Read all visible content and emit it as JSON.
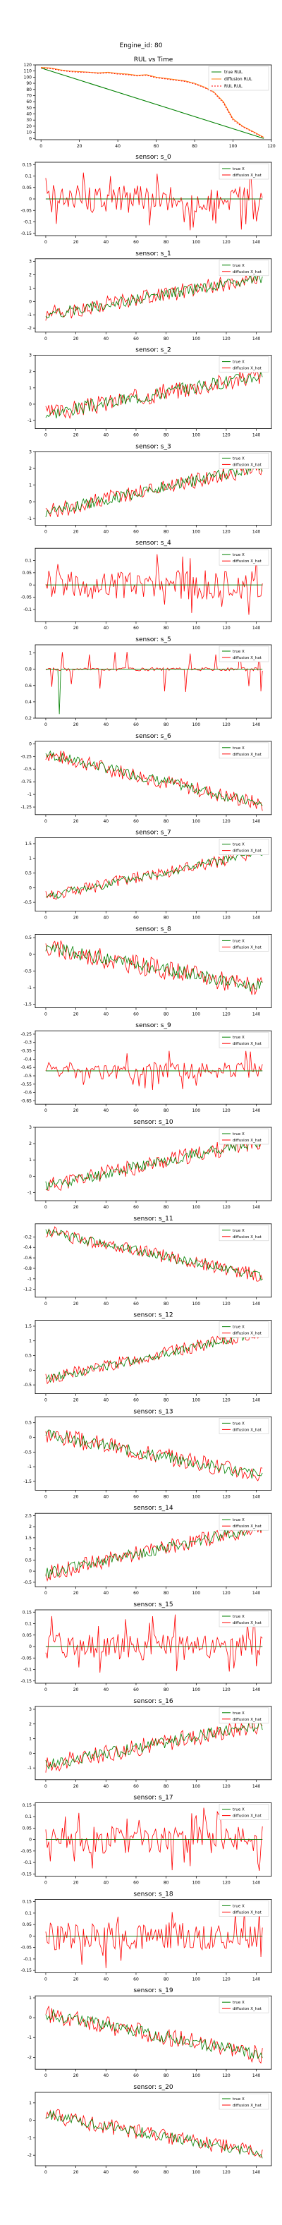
{
  "figure": {
    "suptitle": "Engine_id: 80"
  },
  "chart_data": [
    {
      "type": "line",
      "title": "RUL vs Time",
      "xlim": [
        -3,
        120
      ],
      "ylim": [
        -2,
        120
      ],
      "xticks": [
        0,
        20,
        40,
        60,
        80,
        100,
        120
      ],
      "yticks": [
        0,
        10,
        20,
        30,
        40,
        50,
        60,
        70,
        80,
        90,
        100,
        110,
        120
      ],
      "legend": "top-right",
      "series": [
        {
          "name": "true RUL",
          "color": "#008000",
          "kind": "line",
          "x": [
            0,
            116
          ],
          "y": [
            115,
            0
          ]
        },
        {
          "name": "diffusion RUL",
          "color": "#ff7f0e",
          "kind": "line",
          "x": [
            0,
            5,
            10,
            15,
            20,
            25,
            30,
            35,
            40,
            45,
            50,
            55,
            60,
            65,
            70,
            75,
            80,
            85,
            90,
            95,
            100,
            105,
            110,
            116
          ],
          "y": [
            116,
            115,
            112,
            110,
            109,
            108,
            107,
            108,
            106,
            105,
            103,
            104,
            100,
            98,
            96,
            94,
            90,
            84,
            76,
            60,
            32,
            20,
            12,
            2
          ]
        },
        {
          "name": "RUL RUL",
          "color": "#ff0000",
          "kind": "dash",
          "x": [
            0,
            5,
            10,
            15,
            20,
            25,
            30,
            35,
            40,
            45,
            50,
            55,
            60,
            65,
            70,
            75,
            80,
            85,
            90,
            95,
            100,
            105,
            110,
            116
          ],
          "y": [
            115,
            114,
            111,
            109,
            108,
            108,
            106,
            107,
            105,
            104,
            102,
            103,
            99,
            97,
            95,
            93,
            89,
            83,
            75,
            58,
            30,
            19,
            11,
            1
          ]
        }
      ]
    },
    {
      "type": "line",
      "title": "sensor: s_0",
      "xlim": [
        -7,
        150
      ],
      "ylim": [
        -0.16,
        0.16
      ],
      "yticks": [
        -0.15,
        -0.1,
        -0.05,
        0,
        0.05,
        0.1,
        0.15
      ],
      "trend": [
        0,
        0
      ],
      "noise": 0.06,
      "true_noise": 0.0,
      "spike": 0.14,
      "seed": 1,
      "legend": "top-right"
    },
    {
      "type": "line",
      "title": "sensor: s_1",
      "xlim": [
        -7,
        150
      ],
      "ylim": [
        -2.3,
        3.2
      ],
      "yticks": [
        -2,
        -1,
        0,
        1,
        2,
        3
      ],
      "trend": [
        -1.0,
        1.8
      ],
      "noise": 0.6,
      "true_noise": 0.4,
      "seed": 2,
      "legend": "top-right"
    },
    {
      "type": "line",
      "title": "sensor: s_2",
      "xlim": [
        -7,
        150
      ],
      "ylim": [
        -1.5,
        3.0
      ],
      "yticks": [
        -1,
        0,
        1,
        2,
        3
      ],
      "trend": [
        -0.6,
        1.8
      ],
      "noise": 0.55,
      "true_noise": 0.4,
      "seed": 3,
      "legend": "top-right"
    },
    {
      "type": "line",
      "title": "sensor: s_3",
      "xlim": [
        -7,
        150
      ],
      "ylim": [
        -1.4,
        3.0
      ],
      "yticks": [
        -1,
        0,
        1,
        2,
        3
      ],
      "trend": [
        -0.6,
        2.1
      ],
      "noise": 0.5,
      "true_noise": 0.35,
      "seed": 4,
      "legend": "top-right"
    },
    {
      "type": "line",
      "title": "sensor: s_4",
      "xlim": [
        -7,
        150
      ],
      "ylim": [
        -0.15,
        0.15
      ],
      "yticks": [
        -0.1,
        -0.05,
        0,
        0.05,
        0.1
      ],
      "trend": [
        0,
        0
      ],
      "noise": 0.06,
      "true_noise": 0.0,
      "spike": 0.13,
      "seed": 5,
      "legend": "top-right"
    },
    {
      "type": "line",
      "title": "sensor: s_5",
      "xlim": [
        -7,
        150
      ],
      "ylim": [
        0.2,
        1.1
      ],
      "yticks": [
        0.2,
        0.4,
        0.6,
        0.8,
        1.0
      ],
      "trend": [
        0.8,
        0.8
      ],
      "noise": 0.02,
      "true_noise": 0.0,
      "spike": 0.3,
      "seed": 6,
      "legend": "top-right",
      "dip": [
        9,
        0.25
      ]
    },
    {
      "type": "line",
      "title": "sensor: s_6",
      "xlim": [
        -7,
        150
      ],
      "ylim": [
        -1.4,
        0.05
      ],
      "yticks": [
        -1.25,
        -1.0,
        -0.75,
        -0.5,
        -0.25,
        0.0
      ],
      "trend": [
        -0.2,
        -1.2
      ],
      "noise": 0.15,
      "true_noise": 0.1,
      "seed": 7,
      "legend": "top-right"
    },
    {
      "type": "line",
      "title": "sensor: s_7",
      "xlim": [
        -7,
        150
      ],
      "ylim": [
        -0.8,
        1.7
      ],
      "yticks": [
        -0.5,
        0.0,
        0.5,
        1.0,
        1.5
      ],
      "trend": [
        -0.3,
        1.2
      ],
      "noise": 0.22,
      "true_noise": 0.15,
      "seed": 8,
      "legend": "top-right"
    },
    {
      "type": "line",
      "title": "sensor: s_8",
      "xlim": [
        -7,
        150
      ],
      "ylim": [
        -1.6,
        0.6
      ],
      "yticks": [
        -1.5,
        -1.0,
        -0.5,
        0.0,
        0.5
      ],
      "trend": [
        0.2,
        -1.0
      ],
      "noise": 0.3,
      "true_noise": 0.2,
      "seed": 9,
      "legend": "top-right"
    },
    {
      "type": "line",
      "title": "sensor: s_9",
      "xlim": [
        -7,
        150
      ],
      "ylim": [
        -0.67,
        -0.23
      ],
      "yticks": [
        -0.65,
        -0.6,
        -0.55,
        -0.5,
        -0.45,
        -0.4,
        -0.35,
        -0.3,
        -0.25
      ],
      "trend": [
        -0.47,
        -0.47
      ],
      "noise": 0.05,
      "true_noise": 0.0,
      "spike": 0.12,
      "seed": 10,
      "legend": "top-right"
    },
    {
      "type": "line",
      "title": "sensor: s_10",
      "xlim": [
        -7,
        150
      ],
      "ylim": [
        -1.5,
        3.0
      ],
      "yticks": [
        -1,
        0,
        1,
        2,
        3
      ],
      "trend": [
        -0.6,
        2.2
      ],
      "noise": 0.5,
      "true_noise": 0.35,
      "seed": 11,
      "legend": "top-right"
    },
    {
      "type": "line",
      "title": "sensor: s_11",
      "xlim": [
        -7,
        150
      ],
      "ylim": [
        -1.35,
        0.05
      ],
      "yticks": [
        -1.2,
        -1.0,
        -0.8,
        -0.6,
        -0.4,
        -0.2
      ],
      "trend": [
        -0.1,
        -0.95
      ],
      "noise": 0.13,
      "true_noise": 0.09,
      "seed": 12,
      "legend": "top-right"
    },
    {
      "type": "line",
      "title": "sensor: s_12",
      "xlim": [
        -7,
        150
      ],
      "ylim": [
        -0.8,
        1.7
      ],
      "yticks": [
        -0.5,
        0.0,
        0.5,
        1.0,
        1.5
      ],
      "trend": [
        -0.3,
        1.3
      ],
      "noise": 0.22,
      "true_noise": 0.15,
      "seed": 13,
      "legend": "top-right"
    },
    {
      "type": "line",
      "title": "sensor: s_13",
      "xlim": [
        -7,
        150
      ],
      "ylim": [
        -1.8,
        0.7
      ],
      "yticks": [
        -1.5,
        -1.0,
        -0.5,
        0.0,
        0.5
      ],
      "trend": [
        0.1,
        -1.3
      ],
      "noise": 0.3,
      "true_noise": 0.2,
      "seed": 14,
      "legend": "top-right"
    },
    {
      "type": "line",
      "title": "sensor: s_14",
      "xlim": [
        -7,
        150
      ],
      "ylim": [
        -0.7,
        2.6
      ],
      "yticks": [
        -0.5,
        0.0,
        0.5,
        1.0,
        1.5,
        2.0,
        2.5
      ],
      "trend": [
        -0.1,
        2.0
      ],
      "noise": 0.35,
      "true_noise": 0.25,
      "seed": 15,
      "legend": "top-right"
    },
    {
      "type": "line",
      "title": "sensor: s_15",
      "xlim": [
        -7,
        150
      ],
      "ylim": [
        -0.16,
        0.16
      ],
      "yticks": [
        -0.15,
        -0.1,
        -0.05,
        0,
        0.05,
        0.1,
        0.15
      ],
      "trend": [
        0,
        0
      ],
      "noise": 0.06,
      "true_noise": 0.0,
      "spike": 0.14,
      "seed": 16,
      "legend": "top-right"
    },
    {
      "type": "line",
      "title": "sensor: s_16",
      "xlim": [
        -7,
        150
      ],
      "ylim": [
        -1.8,
        3.2
      ],
      "yticks": [
        -1,
        0,
        1,
        2,
        3
      ],
      "trend": [
        -0.8,
        2.0
      ],
      "noise": 0.6,
      "true_noise": 0.4,
      "seed": 17,
      "legend": "top-right"
    },
    {
      "type": "line",
      "title": "sensor: s_17",
      "xlim": [
        -7,
        150
      ],
      "ylim": [
        -0.16,
        0.16
      ],
      "yticks": [
        -0.15,
        -0.1,
        -0.05,
        0,
        0.05,
        0.1,
        0.15
      ],
      "trend": [
        0,
        0
      ],
      "noise": 0.06,
      "true_noise": 0.0,
      "spike": 0.14,
      "seed": 18,
      "legend": "top-right"
    },
    {
      "type": "line",
      "title": "sensor: s_18",
      "xlim": [
        -7,
        150
      ],
      "ylim": [
        -0.16,
        0.16
      ],
      "yticks": [
        -0.15,
        -0.1,
        -0.05,
        0,
        0.05,
        0.1,
        0.15
      ],
      "trend": [
        0,
        0
      ],
      "noise": 0.06,
      "true_noise": 0.0,
      "spike": 0.14,
      "seed": 19,
      "legend": "top-right"
    },
    {
      "type": "line",
      "title": "sensor: s_19",
      "xlim": [
        -7,
        150
      ],
      "ylim": [
        -2.6,
        1.1
      ],
      "yticks": [
        -2,
        -1,
        0,
        1
      ],
      "trend": [
        0.2,
        -1.9
      ],
      "noise": 0.45,
      "true_noise": 0.3,
      "seed": 20,
      "legend": "top-right"
    },
    {
      "type": "line",
      "title": "sensor: s_20",
      "xlim": [
        -7,
        150
      ],
      "ylim": [
        -2.6,
        1.6
      ],
      "yticks": [
        -2,
        -1,
        0,
        1
      ],
      "trend": [
        0.3,
        -1.9
      ],
      "noise": 0.45,
      "true_noise": 0.3,
      "seed": 21,
      "legend": "top-right"
    }
  ],
  "sensor_legend": {
    "true_label": "true X",
    "pred_label": "diffusion X_hat",
    "true_color": "#008000",
    "pred_color": "#ff0000"
  },
  "sensor_xticks": [
    0,
    20,
    40,
    60,
    80,
    100,
    120,
    140
  ]
}
